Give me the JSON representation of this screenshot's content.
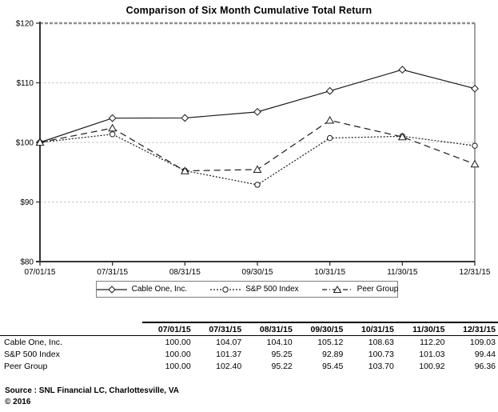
{
  "title": "Comparison of Six Month Cumulative Total Return",
  "chart_data": {
    "type": "line",
    "x": [
      "07/01/15",
      "07/31/15",
      "08/31/15",
      "09/30/15",
      "10/31/15",
      "11/30/15",
      "12/31/15"
    ],
    "series": [
      {
        "name": "Cable One, Inc.",
        "marker": "diamond",
        "line": "solid",
        "values": [
          100.0,
          104.07,
          104.1,
          105.12,
          108.63,
          112.2,
          109.03
        ]
      },
      {
        "name": "S&P 500 Index",
        "marker": "circle",
        "line": "dotted",
        "values": [
          100.0,
          101.37,
          95.25,
          92.89,
          100.73,
          101.03,
          99.44
        ]
      },
      {
        "name": "Peer Group",
        "marker": "triangle",
        "line": "dashed",
        "values": [
          100.0,
          102.4,
          95.22,
          95.45,
          103.7,
          100.92,
          96.36
        ]
      }
    ],
    "ylim": [
      80,
      120
    ],
    "ytick_step": 10,
    "ytick_prefix": "$",
    "grid": "horizontal-dotted",
    "legend_position": "bottom",
    "line_color": "#1a1a1a",
    "grid_color": "#c9c9c9",
    "axis_color": "#333333",
    "top_border_color": "#8e8e8e"
  },
  "table": {
    "columns": [
      "07/01/15",
      "07/31/15",
      "08/31/15",
      "09/30/15",
      "10/31/15",
      "11/30/15",
      "12/31/15"
    ],
    "rows": [
      {
        "label": "Cable One, Inc.",
        "values": [
          "100.00",
          "104.07",
          "104.10",
          "105.12",
          "108.63",
          "112.20",
          "109.03"
        ]
      },
      {
        "label": "S&P 500 Index",
        "values": [
          "100.00",
          "101.37",
          "95.25",
          "92.89",
          "100.73",
          "101.03",
          "99.44"
        ]
      },
      {
        "label": "Peer Group",
        "values": [
          "100.00",
          "102.40",
          "95.22",
          "95.45",
          "103.70",
          "100.92",
          "96.36"
        ]
      }
    ]
  },
  "footer": {
    "source": "Source : SNL Financial LC, Charlottesville, VA",
    "copyright": "© 2016"
  }
}
